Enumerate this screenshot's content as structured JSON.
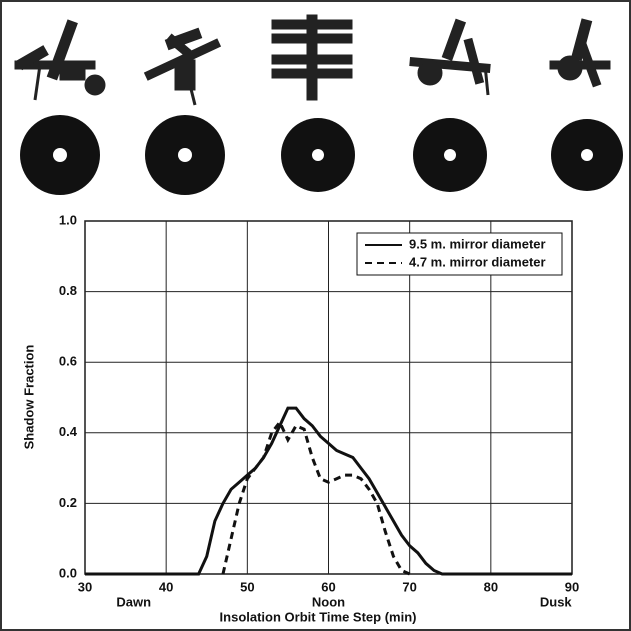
{
  "chart_data": {
    "type": "line",
    "xlabel": "Insolation Orbit Time Step (min)",
    "ylabel": "Shadow Fraction",
    "xlim": [
      30,
      90
    ],
    "ylim": [
      0,
      1
    ],
    "xticks": [
      30,
      40,
      50,
      60,
      70,
      80,
      90
    ],
    "yticks": [
      {
        "value": 0,
        "label": "0.0"
      },
      0.2,
      0.4,
      0.6,
      0.8,
      {
        "value": 1,
        "label": "1.0"
      }
    ],
    "xticks_secondary": [
      {
        "value": 36,
        "label": "Dawn"
      },
      {
        "value": 60,
        "label": "Noon"
      },
      {
        "value": 88,
        "label": "Dusk"
      }
    ],
    "grid": true,
    "legend": "upper right",
    "series": [
      {
        "name": "9.5 m. mirror diameter",
        "color": "#111111",
        "dash": "solid",
        "x": [
          30,
          44,
          45,
          46,
          47,
          48,
          49,
          50,
          51,
          52,
          53,
          54,
          55,
          56,
          57,
          58,
          59,
          60,
          61,
          62,
          63,
          64,
          65,
          66,
          67,
          68,
          69,
          70,
          71,
          72,
          73,
          74,
          90
        ],
        "values": [
          0,
          0,
          0.05,
          0.15,
          0.2,
          0.24,
          0.26,
          0.28,
          0.3,
          0.33,
          0.37,
          0.42,
          0.47,
          0.47,
          0.44,
          0.42,
          0.39,
          0.37,
          0.35,
          0.34,
          0.33,
          0.3,
          0.27,
          0.23,
          0.19,
          0.15,
          0.11,
          0.08,
          0.06,
          0.03,
          0.01,
          0,
          0
        ]
      },
      {
        "name": "4.7 m. mirror diameter",
        "color": "#111111",
        "dash": "dashed",
        "x": [
          47,
          48,
          49,
          50,
          51,
          52,
          53,
          54,
          55,
          56,
          57,
          58,
          59,
          60,
          61,
          62,
          63,
          64,
          65,
          66,
          67,
          68,
          69,
          70
        ],
        "values": [
          0,
          0.1,
          0.2,
          0.27,
          0.3,
          0.33,
          0.4,
          0.43,
          0.38,
          0.42,
          0.41,
          0.33,
          0.27,
          0.26,
          0.27,
          0.28,
          0.28,
          0.27,
          0.24,
          0.2,
          0.12,
          0.05,
          0.01,
          0
        ]
      }
    ]
  }
}
